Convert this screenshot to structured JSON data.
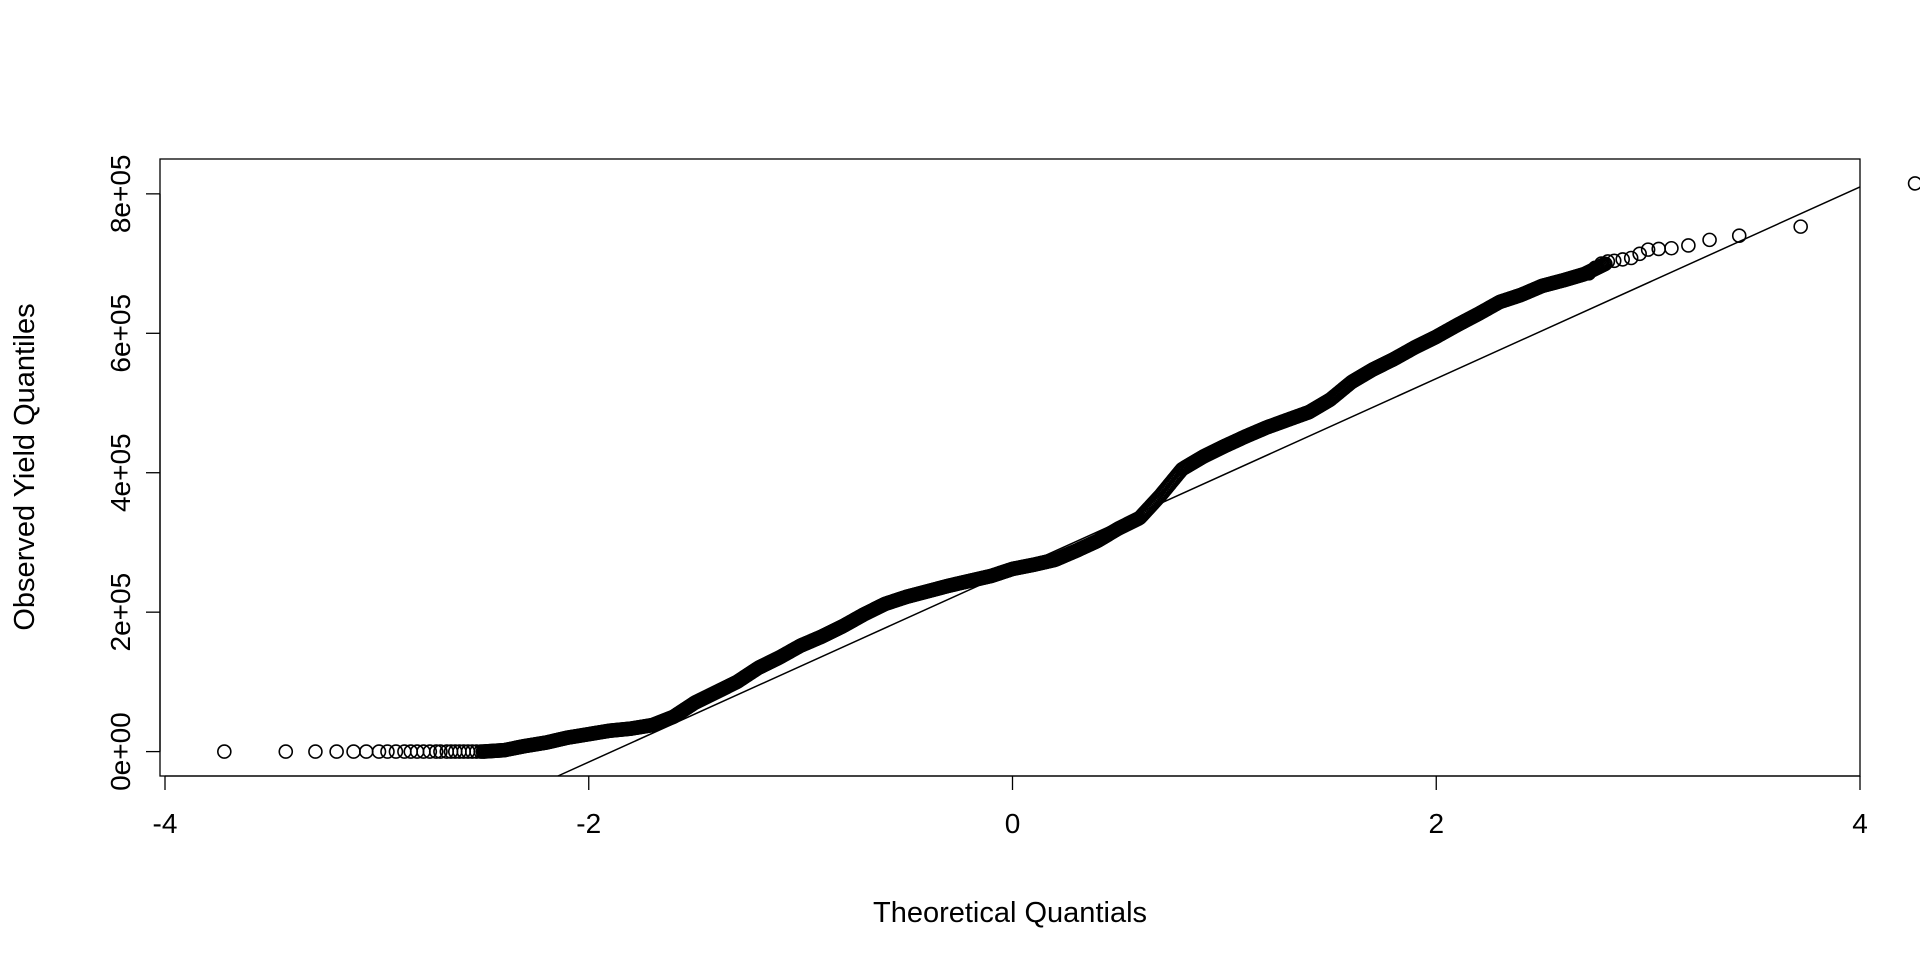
{
  "chart_data": {
    "type": "scatter",
    "title": "",
    "xlabel": "Theoretical Quantials",
    "ylabel": "Observed Yield Quantiles",
    "xlim": [
      -4,
      4
    ],
    "ylim": [
      -35000,
      850000
    ],
    "x_ticks": [
      -4,
      -2,
      0,
      2,
      4
    ],
    "x_tick_labels": [
      "-4",
      "-2",
      "0",
      "2",
      "4"
    ],
    "y_ticks": [
      0,
      200000,
      400000,
      600000,
      800000
    ],
    "y_tick_labels": [
      "0e+00",
      "2e+05",
      "4e+05",
      "6e+05",
      "8e+05"
    ],
    "reference_line": {
      "intercept": 260000,
      "slope": 137500
    },
    "curve_knots": [
      [
        -2.5,
        0
      ],
      [
        -2.4,
        2000
      ],
      [
        -2.3,
        8000
      ],
      [
        -2.2,
        13000
      ],
      [
        -2.1,
        20000
      ],
      [
        -2.0,
        25000
      ],
      [
        -1.9,
        30000
      ],
      [
        -1.8,
        33000
      ],
      [
        -1.7,
        38000
      ],
      [
        -1.6,
        50000
      ],
      [
        -1.5,
        70000
      ],
      [
        -1.4,
        85000
      ],
      [
        -1.3,
        100000
      ],
      [
        -1.2,
        120000
      ],
      [
        -1.1,
        135000
      ],
      [
        -1.0,
        152000
      ],
      [
        -0.9,
        165000
      ],
      [
        -0.8,
        180000
      ],
      [
        -0.7,
        197000
      ],
      [
        -0.6,
        212000
      ],
      [
        -0.5,
        222000
      ],
      [
        -0.4,
        230000
      ],
      [
        -0.3,
        238000
      ],
      [
        -0.2,
        245000
      ],
      [
        -0.1,
        252000
      ],
      [
        0.0,
        262000
      ],
      [
        0.1,
        268000
      ],
      [
        0.2,
        275000
      ],
      [
        0.3,
        288000
      ],
      [
        0.4,
        302000
      ],
      [
        0.5,
        320000
      ],
      [
        0.6,
        335000
      ],
      [
        0.7,
        368000
      ],
      [
        0.8,
        405000
      ],
      [
        0.9,
        423000
      ],
      [
        1.0,
        438000
      ],
      [
        1.1,
        452000
      ],
      [
        1.2,
        465000
      ],
      [
        1.3,
        476000
      ],
      [
        1.4,
        487000
      ],
      [
        1.5,
        505000
      ],
      [
        1.6,
        530000
      ],
      [
        1.7,
        548000
      ],
      [
        1.8,
        563000
      ],
      [
        1.9,
        580000
      ],
      [
        2.0,
        595000
      ],
      [
        2.1,
        612000
      ],
      [
        2.2,
        628000
      ],
      [
        2.3,
        645000
      ],
      [
        2.4,
        655000
      ],
      [
        2.5,
        668000
      ],
      [
        2.6,
        676000
      ],
      [
        2.7,
        685000
      ],
      [
        2.8,
        700000
      ]
    ],
    "lower_tail_points": [
      [
        -3.72,
        0
      ],
      [
        -3.43,
        0
      ],
      [
        -3.29,
        0
      ],
      [
        -3.19,
        0
      ],
      [
        -3.11,
        0
      ],
      [
        -3.05,
        0
      ],
      [
        -2.99,
        0
      ],
      [
        -2.95,
        0
      ],
      [
        -2.91,
        0
      ],
      [
        -2.87,
        0
      ],
      [
        -2.84,
        0
      ],
      [
        -2.81,
        0
      ],
      [
        -2.78,
        0
      ],
      [
        -2.75,
        0
      ],
      [
        -2.72,
        0
      ],
      [
        -2.7,
        0
      ],
      [
        -2.67,
        0
      ],
      [
        -2.65,
        0
      ],
      [
        -2.63,
        0
      ],
      [
        -2.61,
        0
      ],
      [
        -2.59,
        0
      ],
      [
        -2.57,
        0
      ],
      [
        -2.55,
        0
      ],
      [
        -2.53,
        0
      ],
      [
        -2.51,
        0
      ]
    ],
    "upper_tail_points": [
      [
        2.72,
        686000
      ],
      [
        2.75,
        694000
      ],
      [
        2.78,
        700000
      ],
      [
        2.81,
        703000
      ],
      [
        2.84,
        704000
      ],
      [
        2.88,
        706000
      ],
      [
        2.92,
        708000
      ],
      [
        2.96,
        714000
      ],
      [
        3.0,
        720000
      ],
      [
        3.05,
        721000
      ],
      [
        3.11,
        722000
      ],
      [
        3.19,
        726000
      ],
      [
        3.29,
        734000
      ],
      [
        3.43,
        740000
      ],
      [
        3.72,
        753000
      ],
      [
        4.26,
        815000
      ]
    ]
  }
}
